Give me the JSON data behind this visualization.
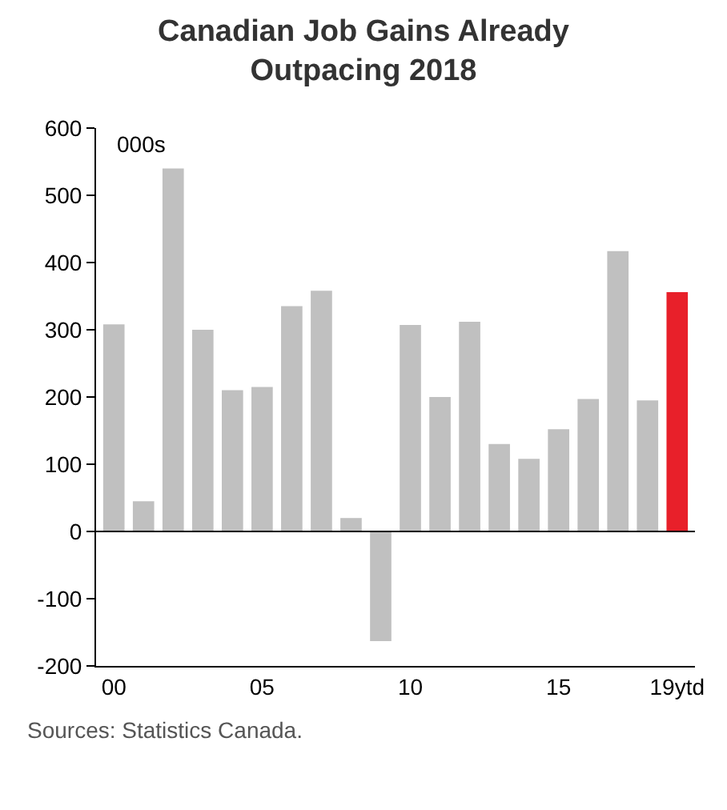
{
  "chart_data": {
    "type": "bar",
    "title": "Canadian Job Gains Already\nOutpacing 2018",
    "categories": [
      "00",
      null,
      null,
      null,
      null,
      "05",
      null,
      null,
      null,
      null,
      "10",
      null,
      null,
      null,
      null,
      "15",
      null,
      null,
      null,
      "19ytd"
    ],
    "values": [
      308,
      45,
      540,
      300,
      210,
      215,
      335,
      358,
      20,
      -163,
      307,
      200,
      312,
      130,
      108,
      152,
      197,
      417,
      195,
      356
    ],
    "colors": [
      "#c0c0c0",
      "#c0c0c0",
      "#c0c0c0",
      "#c0c0c0",
      "#c0c0c0",
      "#c0c0c0",
      "#c0c0c0",
      "#c0c0c0",
      "#c0c0c0",
      "#c0c0c0",
      "#c0c0c0",
      "#c0c0c0",
      "#c0c0c0",
      "#c0c0c0",
      "#c0c0c0",
      "#c0c0c0",
      "#c0c0c0",
      "#c0c0c0",
      "#c0c0c0",
      "#e8202a"
    ],
    "ylim": [
      -200,
      600
    ],
    "yticks": [
      -200,
      -100,
      0,
      100,
      200,
      300,
      400,
      500,
      600
    ],
    "annotations": [
      "000s",
      "Sources: Statistics Canada."
    ],
    "ref_lines": [
      {
        "axis": "y",
        "value": 0,
        "color": "#000000"
      }
    ]
  }
}
